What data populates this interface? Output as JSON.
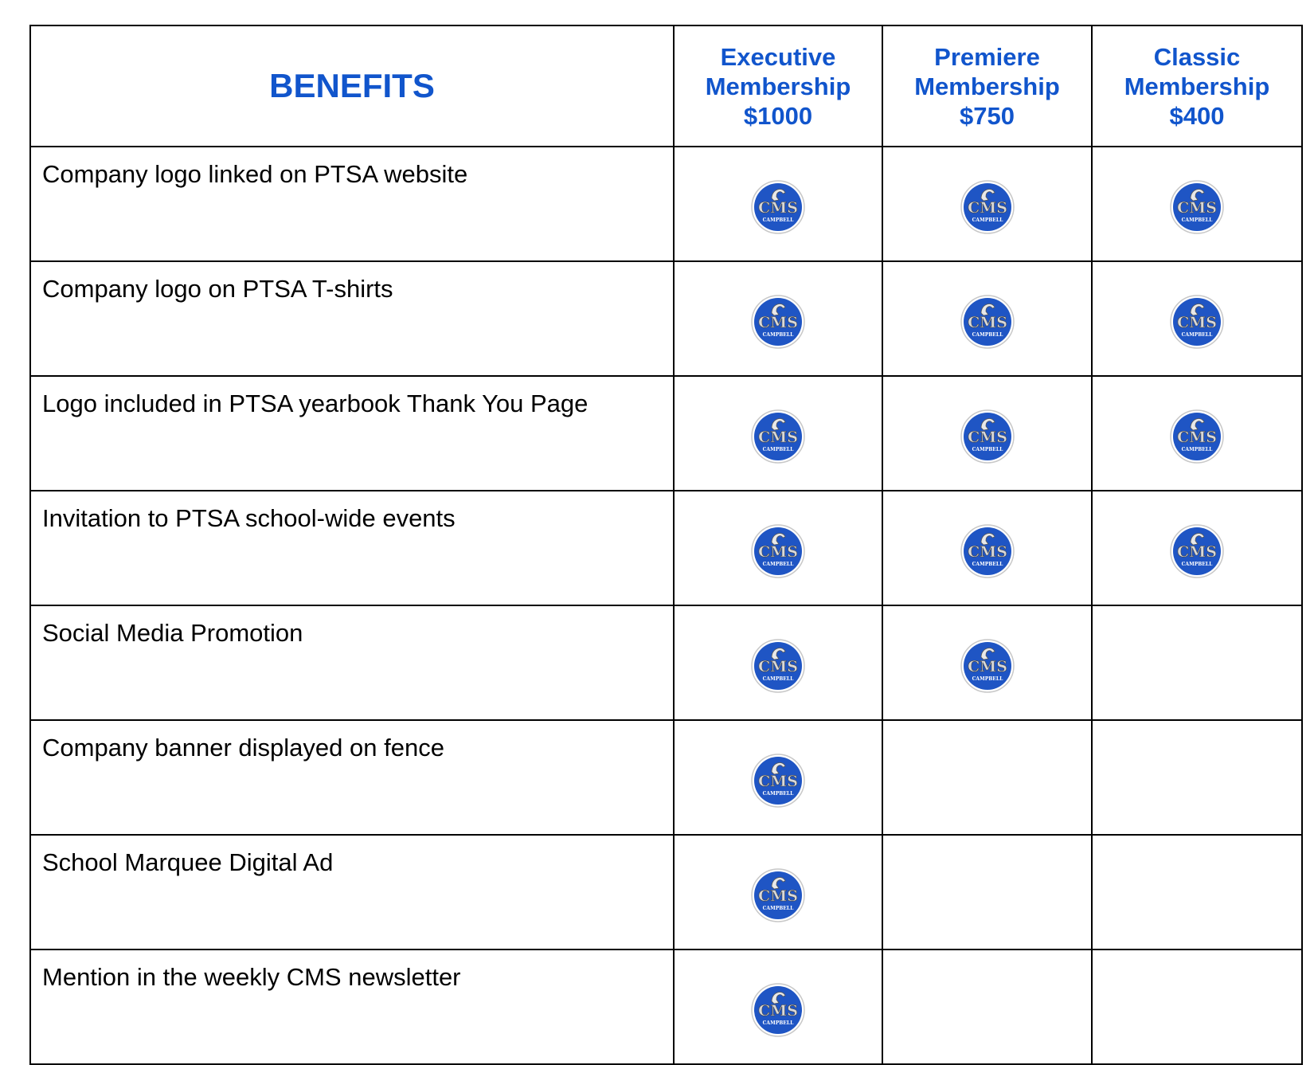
{
  "table": {
    "header": {
      "title": "BENEFITS",
      "tiers": [
        {
          "name": "Executive Membership",
          "price": "$1000"
        },
        {
          "name": "Premiere Membership",
          "price": "$750"
        },
        {
          "name": "Classic Membership",
          "price": "$400"
        }
      ]
    },
    "logo": {
      "text": "CMS",
      "subtext": "CAMPBELL"
    },
    "rows": [
      {
        "benefit": "Company logo linked on PTSA website",
        "included": [
          true,
          true,
          true
        ]
      },
      {
        "benefit": "Company logo on PTSA T-shirts",
        "included": [
          true,
          true,
          true
        ]
      },
      {
        "benefit": "Logo included in PTSA yearbook Thank You Page",
        "included": [
          true,
          true,
          true
        ]
      },
      {
        "benefit": "Invitation to PTSA school-wide events",
        "included": [
          true,
          true,
          true
        ]
      },
      {
        "benefit": "Social Media Promotion",
        "included": [
          true,
          true,
          false
        ]
      },
      {
        "benefit": "Company banner displayed on fence",
        "included": [
          true,
          false,
          false
        ]
      },
      {
        "benefit": "School Marquee Digital Ad",
        "included": [
          true,
          false,
          false
        ]
      },
      {
        "benefit": "Mention in the weekly CMS newsletter",
        "included": [
          true,
          false,
          false
        ]
      }
    ]
  }
}
